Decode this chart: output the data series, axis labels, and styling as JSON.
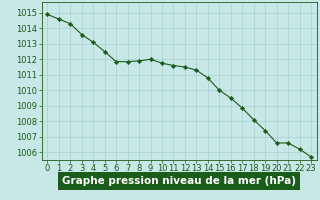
{
  "x": [
    0,
    1,
    2,
    3,
    4,
    5,
    6,
    7,
    8,
    9,
    10,
    11,
    12,
    13,
    14,
    15,
    16,
    17,
    18,
    19,
    20,
    21,
    22,
    23
  ],
  "y": [
    1014.9,
    1014.6,
    1014.3,
    1013.6,
    1013.1,
    1012.5,
    1011.85,
    1011.85,
    1011.9,
    1012.0,
    1011.75,
    1011.6,
    1011.5,
    1011.3,
    1010.8,
    1010.0,
    1009.5,
    1008.85,
    1008.1,
    1007.4,
    1006.6,
    1006.6,
    1006.2,
    1005.7
  ],
  "line_color": "#1a5c1a",
  "marker_color": "#1a5c1a",
  "bg_color": "#c8e8e8",
  "grid_color": "#a8d0d0",
  "bottom_bar_color": "#1a5c1a",
  "title": "Graphe pression niveau de la mer (hPa)",
  "ylim": [
    1005.5,
    1015.7
  ],
  "xlim": [
    -0.5,
    23.5
  ],
  "yticks": [
    1006,
    1007,
    1008,
    1009,
    1010,
    1011,
    1012,
    1013,
    1014,
    1015
  ],
  "xticks": [
    0,
    1,
    2,
    3,
    4,
    5,
    6,
    7,
    8,
    9,
    10,
    11,
    12,
    13,
    14,
    15,
    16,
    17,
    18,
    19,
    20,
    21,
    22,
    23
  ],
  "title_fontsize": 7.5,
  "tick_fontsize": 6.0,
  "title_color": "#ffffff",
  "tick_color": "#1a5c1a",
  "axis_color": "#1a5c1a",
  "outer_bg": "#c8e8e8"
}
